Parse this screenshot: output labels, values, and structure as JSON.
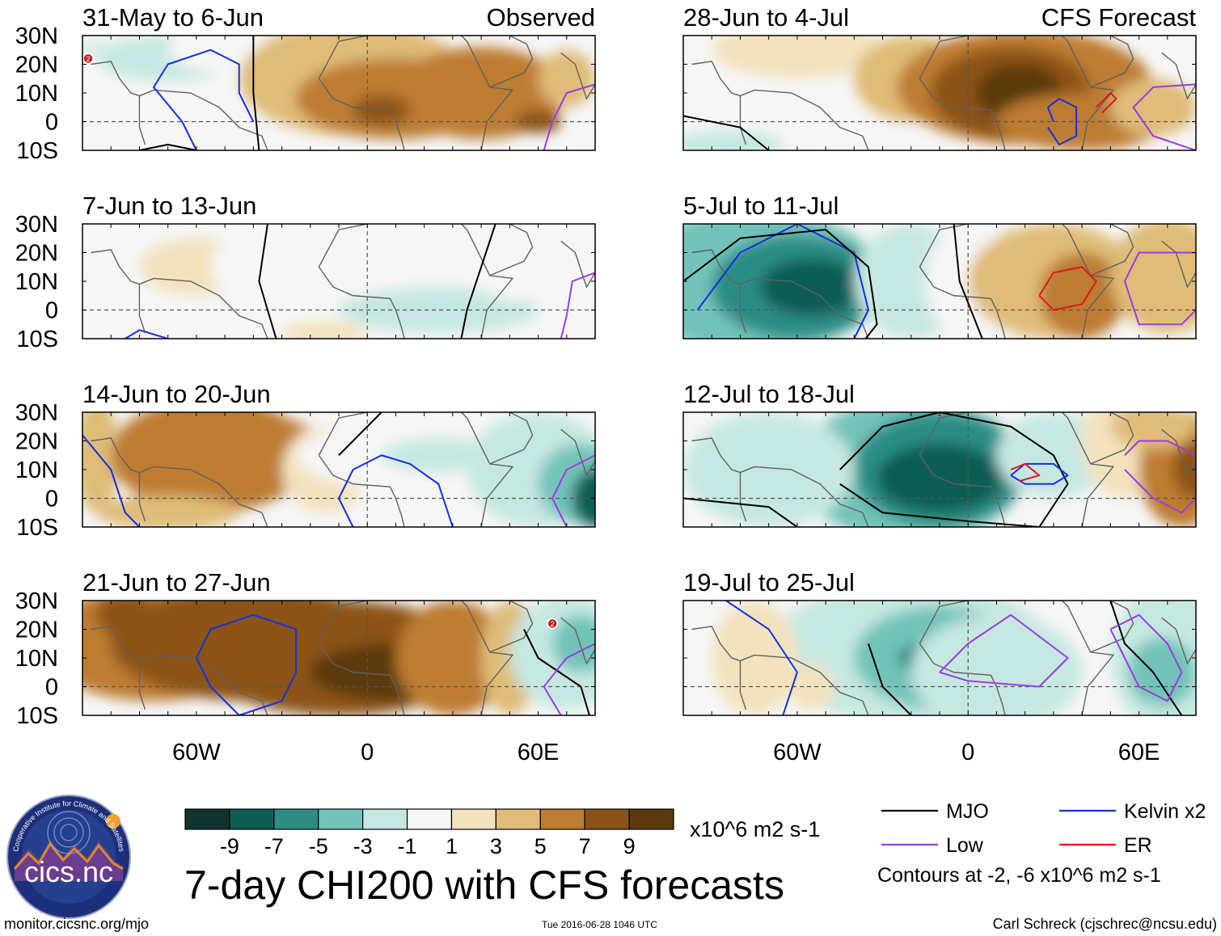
{
  "chart_data": {
    "type": "heatmap",
    "title": "7-day CHI200 with CFS forecasts",
    "variable": "CHI200 anomaly (velocity potential at 200 hPa)",
    "units": "x10^6 m2 s-1",
    "lon_range": [
      -100,
      80
    ],
    "lat_range": [
      -10,
      30
    ],
    "lat_ticks": [
      "30N",
      "20N",
      "10N",
      "0",
      "10S"
    ],
    "lon_ticks": [
      "60W",
      "0",
      "60E"
    ],
    "column_titles": {
      "left": "Observed",
      "right": "CFS Forecast"
    },
    "colorbar": {
      "labels": [
        "-9",
        "-7",
        "-5",
        "-3",
        "-1",
        "1",
        "3",
        "5",
        "7",
        "9"
      ],
      "colors": [
        "#10342d",
        "#0d5d54",
        "#2c8d85",
        "#72c3b9",
        "#c6e8e2",
        "#f6f6f6",
        "#f3e2bd",
        "#dfbc78",
        "#bd7c31",
        "#8c5318",
        "#5b3a0e"
      ],
      "units": "x10^6 m2 s-1"
    },
    "panels": [
      {
        "period": "31-May to 6-Jun",
        "source": "Observed",
        "max_neg": -5,
        "max_pos": 7,
        "features": [
          "positive anomalies over Africa and Arabian Sea",
          "negative over Caribbean",
          "tropical cyclone label 2 near 95W 22N"
        ]
      },
      {
        "period": "7-Jun to 13-Jun",
        "source": "Observed",
        "max_neg": -3,
        "max_pos": 3,
        "features": [
          "weak anomalies",
          "light negative over central Africa"
        ]
      },
      {
        "period": "14-Jun to 20-Jun",
        "source": "Observed",
        "max_neg": -9,
        "max_pos": 7,
        "features": [
          "positive over Atlantic and South America",
          "strong negative over western Indian Ocean"
        ]
      },
      {
        "period": "21-Jun to 27-Jun",
        "source": "Observed",
        "max_neg": -7,
        "max_pos": 9,
        "features": [
          "strong positive over Atlantic and Africa",
          "negative over Arabian Sea",
          "tropical cyclone label 2 near 65E 22N"
        ]
      },
      {
        "period": "28-Jun to 4-Jul",
        "source": "CFS Forecast",
        "max_neg": -3,
        "max_pos": 9,
        "features": [
          "strong positive over Africa",
          "negative over Caribbean"
        ]
      },
      {
        "period": "5-Jul to 11-Jul",
        "source": "CFS Forecast",
        "max_neg": -9,
        "max_pos": 7,
        "features": [
          "strong negative over tropical Atlantic / Caribbean",
          "positive over East Africa and Arabian Sea"
        ]
      },
      {
        "period": "12-Jul to 18-Jul",
        "source": "CFS Forecast",
        "max_neg": -9,
        "max_pos": 7,
        "features": [
          "strong negative over west Africa / Atlantic",
          "positive over Arabian Sea"
        ]
      },
      {
        "period": "19-Jul to 25-Jul",
        "source": "CFS Forecast",
        "max_neg": -7,
        "max_pos": 3,
        "features": [
          "negative over Africa and Arabian Sea",
          "weak positive over Atlantic"
        ]
      }
    ],
    "contour_legend": [
      {
        "name": "MJO",
        "color": "#000000"
      },
      {
        "name": "Kelvin x2",
        "color": "#1530e0"
      },
      {
        "name": "Low",
        "color": "#9c3ce0"
      },
      {
        "name": "ER",
        "color": "#e01818"
      }
    ],
    "contour_note": "Contours at -2, -6 x10^6 m2 s-1",
    "cyclone_label": "2"
  },
  "logo": {
    "text": "cics.nc",
    "ring_text": "Cooperative Institute for Climate and Satellites"
  },
  "footer": {
    "url": "monitor.cicsnc.org/mjo",
    "timestamp": "Tue 2016-06-28 1046 UTC",
    "author": "Carl Schreck (cjschrec@ncsu.edu)"
  }
}
